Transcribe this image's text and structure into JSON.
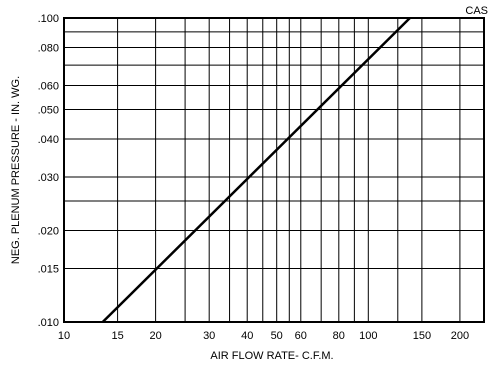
{
  "chart_data": {
    "type": "line",
    "title": "",
    "tag": "CAS",
    "xlabel": "AIR FLOW RATE- C.F.M.",
    "ylabel": "NEG. PLENUM PRESSURE - IN. WG.",
    "xscale": "log",
    "yscale": "log",
    "xlim": [
      10,
      240
    ],
    "ylim": [
      0.01,
      0.1
    ],
    "grid": true,
    "legend": "none",
    "xticks": [
      10,
      15,
      20,
      30,
      40,
      50,
      60,
      80,
      100,
      150,
      200
    ],
    "xtick_labels": [
      "10",
      "15",
      "20",
      "30",
      "40",
      "50",
      "60",
      "80",
      "100",
      "150",
      "200"
    ],
    "x_gridlines": [
      10,
      15,
      20,
      25,
      30,
      35,
      40,
      45,
      50,
      55,
      60,
      70,
      80,
      90,
      100,
      125,
      150,
      200
    ],
    "yticks": [
      0.01,
      0.015,
      0.02,
      0.03,
      0.04,
      0.05,
      0.06,
      0.08,
      0.1
    ],
    "ytick_labels": [
      ".010",
      ".015",
      ".020",
      ".030",
      ".040",
      ".050",
      ".060",
      ".080",
      ".100"
    ],
    "y_gridlines": [
      0.01,
      0.015,
      0.02,
      0.025,
      0.03,
      0.04,
      0.05,
      0.06,
      0.07,
      0.08,
      0.09,
      0.1
    ],
    "series": [
      {
        "x": [
          13.4,
          137
        ],
        "y": [
          0.01,
          0.1
        ],
        "color": "#000000"
      }
    ]
  }
}
